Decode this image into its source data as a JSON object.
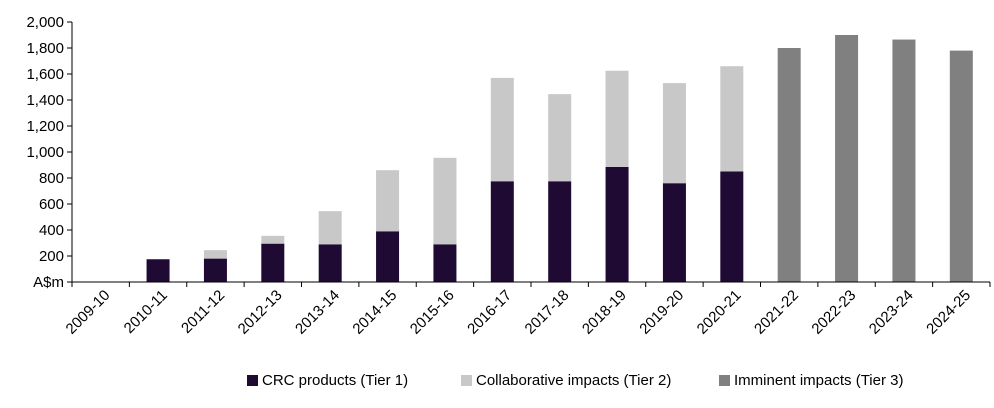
{
  "chart_data": {
    "type": "bar",
    "stacked": true,
    "categories": [
      "2009-10",
      "2010-11",
      "2011-12",
      "2012-13",
      "2013-14",
      "2014-15",
      "2015-16",
      "2016-17",
      "2017-18",
      "2018-19",
      "2019-20",
      "2020-21",
      "2021-22",
      "2022-23",
      "2023-24",
      "2024-25"
    ],
    "series": [
      {
        "name": "CRC products (Tier 1)",
        "color": "#1f0a33",
        "values": [
          0,
          175,
          180,
          295,
          290,
          390,
          290,
          775,
          775,
          885,
          760,
          850,
          0,
          0,
          0,
          0
        ]
      },
      {
        "name": "Collaborative impacts (Tier 2)",
        "color": "#c8c8c8",
        "values": [
          0,
          0,
          65,
          60,
          255,
          470,
          665,
          795,
          670,
          740,
          770,
          810,
          0,
          0,
          0,
          0
        ]
      },
      {
        "name": "Imminent impacts (Tier 3)",
        "color": "#808080",
        "values": [
          0,
          0,
          0,
          0,
          0,
          0,
          0,
          0,
          0,
          0,
          0,
          0,
          1800,
          1900,
          1865,
          1780
        ]
      }
    ],
    "yticks": [
      "A$m",
      "200",
      "400",
      "600",
      "800",
      "1,000",
      "1,200",
      "1,400",
      "1,600",
      "1,800",
      "2,000"
    ],
    "ylim": [
      0,
      2000
    ],
    "grid": false,
    "legend_position": "bottom"
  }
}
